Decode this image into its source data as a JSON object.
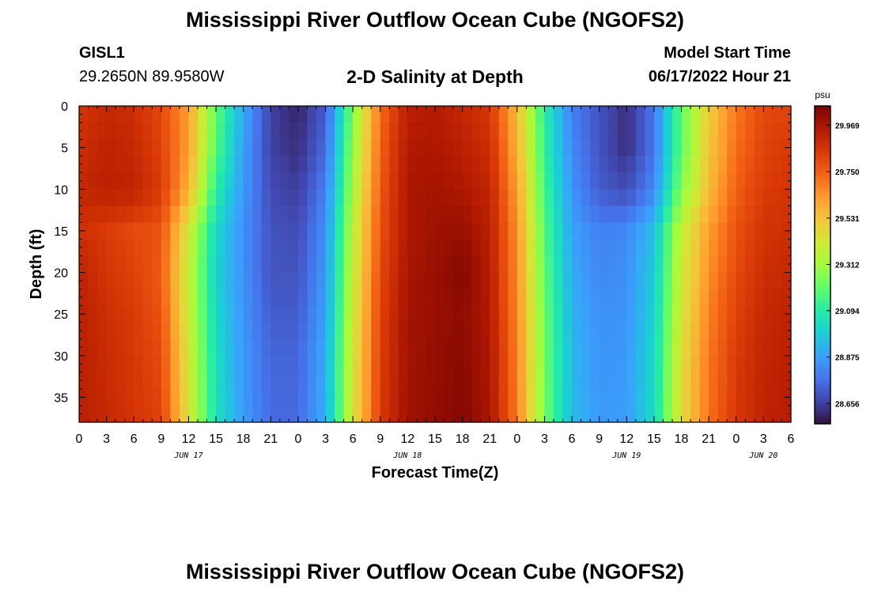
{
  "header": {
    "title": "Mississippi River Outflow Ocean Cube (NGOFS2)",
    "station_id": "GISL1",
    "station_coords": "29.2650N  89.9580W",
    "subtitle": "2-D Salinity at Depth",
    "model_start_label": "Model Start Time",
    "model_start_value": "06/17/2022 Hour 21"
  },
  "footer": {
    "title": "Mississippi River Outflow Ocean Cube (NGOFS2)"
  },
  "chart_data": {
    "type": "heatmap",
    "variable": "salinity",
    "xlabel": "Forecast Time(Z)",
    "ylabel": "Depth (ft)",
    "x_hour_range": [
      0,
      78
    ],
    "x_hour_ticks": [
      0,
      3,
      6,
      9,
      12,
      15,
      18,
      21,
      24,
      27,
      30,
      33,
      36,
      39,
      42,
      45,
      48,
      51,
      54,
      57,
      60,
      63,
      66,
      69,
      72,
      75,
      78
    ],
    "x_tick_labels": [
      "0",
      "3",
      "6",
      "9",
      "12",
      "15",
      "18",
      "21",
      "0",
      "3",
      "6",
      "9",
      "12",
      "15",
      "18",
      "21",
      "0",
      "3",
      "6",
      "9",
      "12",
      "15",
      "18",
      "21",
      "0",
      "3",
      "6"
    ],
    "date_labels": [
      {
        "hour": 12,
        "label": "JUN 17"
      },
      {
        "hour": 36,
        "label": "JUN 18"
      },
      {
        "hour": 60,
        "label": "JUN 19"
      },
      {
        "hour": 75,
        "label": "JUN 20"
      }
    ],
    "ylim": [
      0,
      38
    ],
    "y_ticks": [
      0,
      5,
      10,
      15,
      20,
      25,
      30,
      35
    ],
    "colorbar": {
      "unit": "psu",
      "vmin": 28.56,
      "vmax": 30.06,
      "ticks": [
        29.969,
        29.75,
        29.531,
        29.312,
        29.094,
        28.875,
        28.656
      ]
    },
    "colormap": [
      "#30123b",
      "#4145ab",
      "#4675ed",
      "#39a2fc",
      "#1bcfd4",
      "#24eca6",
      "#61fc6c",
      "#a4fc3b",
      "#d1e834",
      "#f3c63a",
      "#fe9b2d",
      "#f36315",
      "#d93806",
      "#b11901",
      "#7a0402"
    ],
    "time_hours": [
      0,
      3,
      6,
      9,
      12,
      15,
      18,
      21,
      24,
      27,
      30,
      33,
      36,
      39,
      42,
      45,
      48,
      51,
      54,
      57,
      60,
      63,
      66,
      69,
      72,
      75,
      78
    ],
    "depths_ft": [
      0,
      5,
      10,
      15,
      20,
      25,
      30,
      38
    ],
    "salinity_grid": [
      [
        29.85,
        29.9,
        29.88,
        29.8,
        29.62,
        29.2,
        28.9,
        28.66,
        28.6,
        28.72,
        29.25,
        29.72,
        29.93,
        29.95,
        29.9,
        29.85,
        29.55,
        29.1,
        28.8,
        28.7,
        28.62,
        28.78,
        29.2,
        29.5,
        29.7,
        29.8,
        29.82
      ],
      [
        29.88,
        29.92,
        29.9,
        29.82,
        29.62,
        29.18,
        28.88,
        28.66,
        28.62,
        28.75,
        29.28,
        29.74,
        29.95,
        29.96,
        29.93,
        29.88,
        29.58,
        29.12,
        28.82,
        28.7,
        28.62,
        28.78,
        29.2,
        29.52,
        29.72,
        29.82,
        29.84
      ],
      [
        29.9,
        29.93,
        29.92,
        29.84,
        29.58,
        29.1,
        28.86,
        28.68,
        28.65,
        28.8,
        29.32,
        29.76,
        29.96,
        29.98,
        29.96,
        29.91,
        29.62,
        29.15,
        28.85,
        28.72,
        28.68,
        28.82,
        29.25,
        29.55,
        29.75,
        29.84,
        29.86
      ],
      [
        29.88,
        29.84,
        29.8,
        29.78,
        29.42,
        29.02,
        28.84,
        28.7,
        28.68,
        28.84,
        29.36,
        29.78,
        29.96,
        29.99,
        30.0,
        29.93,
        29.65,
        29.18,
        28.88,
        28.8,
        28.82,
        28.95,
        29.38,
        29.62,
        29.78,
        29.86,
        29.88
      ],
      [
        29.92,
        29.86,
        29.82,
        29.76,
        29.38,
        29.0,
        28.84,
        28.7,
        28.7,
        28.86,
        29.38,
        29.8,
        29.97,
        30.0,
        30.04,
        29.94,
        29.66,
        29.2,
        28.9,
        28.82,
        28.84,
        28.98,
        29.4,
        29.65,
        29.8,
        29.88,
        29.9
      ],
      [
        29.93,
        29.88,
        29.84,
        29.78,
        29.4,
        29.02,
        28.85,
        28.72,
        28.72,
        28.88,
        29.4,
        29.82,
        29.98,
        30.0,
        30.02,
        29.95,
        29.67,
        29.22,
        28.92,
        28.84,
        28.85,
        29.0,
        29.42,
        29.68,
        29.82,
        29.9,
        29.92
      ],
      [
        29.93,
        29.89,
        29.85,
        29.8,
        29.42,
        29.04,
        28.86,
        28.74,
        28.74,
        28.9,
        29.42,
        29.83,
        29.98,
        30.01,
        30.03,
        29.96,
        29.68,
        29.23,
        28.93,
        28.85,
        28.86,
        29.02,
        29.45,
        29.7,
        29.84,
        29.91,
        29.93
      ],
      [
        29.93,
        29.9,
        29.86,
        29.82,
        29.44,
        29.05,
        28.87,
        28.75,
        28.75,
        28.91,
        29.43,
        29.84,
        29.99,
        30.01,
        30.04,
        29.97,
        29.69,
        29.24,
        28.94,
        28.86,
        28.87,
        29.03,
        29.46,
        29.71,
        29.85,
        29.92,
        29.94
      ]
    ]
  }
}
